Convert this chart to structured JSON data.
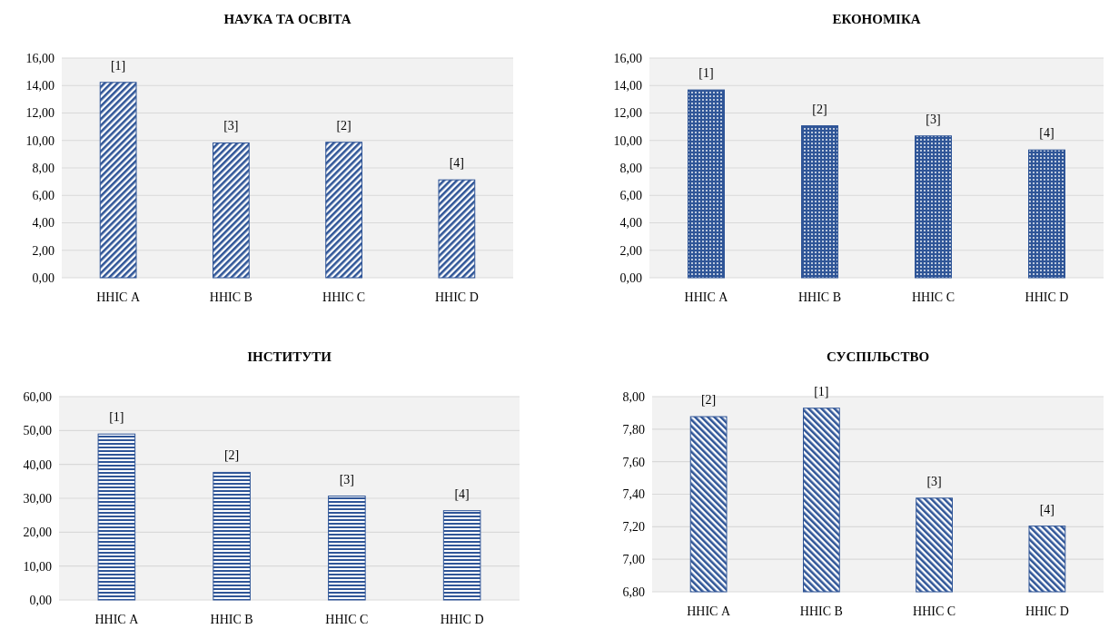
{
  "chart_data": [
    {
      "type": "bar",
      "title": "НАУКА ТА ОСВІТА",
      "categories": [
        "ННІС A",
        "ННІС B",
        "ННІС C",
        "ННІС D"
      ],
      "values": [
        14.23,
        9.82,
        9.87,
        7.13
      ],
      "color": "#2f5597",
      "ylim": [
        0,
        16
      ],
      "yticks": [
        {
          "value": 0,
          "label": "0,00"
        },
        {
          "value": 2,
          "label": "2,00"
        },
        {
          "value": 4,
          "label": "4,00"
        },
        {
          "value": 6,
          "label": "6,00"
        },
        {
          "value": 8,
          "label": "8,00"
        },
        {
          "value": 10,
          "label": "10,00"
        },
        {
          "value": 12,
          "label": "12,00"
        },
        {
          "value": 14,
          "label": "14,00"
        },
        {
          "value": 16,
          "label": "16,00"
        }
      ],
      "grid": "y",
      "annotations": [
        {
          "text": "[1]",
          "x": "ННІС A",
          "y": 14.23
        },
        {
          "text": "[3]",
          "x": "ННІС B",
          "y": 9.82
        },
        {
          "text": "[2]",
          "x": "ННІС C",
          "y": 9.87
        },
        {
          "text": "[4]",
          "x": "ННІС D",
          "y": 7.13
        }
      ]
    },
    {
      "type": "bar",
      "title": "ЕКОНОМІКА",
      "categories": [
        "ННІС A",
        "ННІС B",
        "ННІС C",
        "ННІС D"
      ],
      "values": [
        13.68,
        11.07,
        10.33,
        9.31
      ],
      "color": "#2f5597",
      "ylim": [
        0,
        16
      ],
      "yticks": [
        {
          "value": 0,
          "label": "0,00"
        },
        {
          "value": 2,
          "label": "2,00"
        },
        {
          "value": 4,
          "label": "4,00"
        },
        {
          "value": 6,
          "label": "6,00"
        },
        {
          "value": 8,
          "label": "8,00"
        },
        {
          "value": 10,
          "label": "10,00"
        },
        {
          "value": 12,
          "label": "12,00"
        },
        {
          "value": 14,
          "label": "14,00"
        },
        {
          "value": 16,
          "label": "16,00"
        }
      ],
      "grid": "y",
      "annotations": [
        {
          "text": "[1]",
          "x": "ННІС A",
          "y": 13.68
        },
        {
          "text": "[2]",
          "x": "ННІС B",
          "y": 11.07
        },
        {
          "text": "[3]",
          "x": "ННІС C",
          "y": 10.33
        },
        {
          "text": "[4]",
          "x": "ННІС D",
          "y": 9.31
        }
      ]
    },
    {
      "type": "bar",
      "title": "ІНСТИТУТИ",
      "categories": [
        "ННІС A",
        "ННІС B",
        "ННІС C",
        "ННІС D"
      ],
      "values": [
        48.97,
        37.65,
        30.66,
        26.34
      ],
      "color": "#2f5597",
      "ylim": [
        0,
        60
      ],
      "yticks": [
        {
          "value": 0,
          "label": "0,00"
        },
        {
          "value": 10,
          "label": "10,00"
        },
        {
          "value": 20,
          "label": "20,00"
        },
        {
          "value": 30,
          "label": "30,00"
        },
        {
          "value": 40,
          "label": "40,00"
        },
        {
          "value": 50,
          "label": "50,00"
        },
        {
          "value": 60,
          "label": "60,00"
        }
      ],
      "grid": "y",
      "annotations": [
        {
          "text": "[1]",
          "x": "ННІС A",
          "y": 48.97
        },
        {
          "text": "[2]",
          "x": "ННІС B",
          "y": 37.65
        },
        {
          "text": "[3]",
          "x": "ННІС C",
          "y": 30.66
        },
        {
          "text": "[4]",
          "x": "ННІС D",
          "y": 26.34
        }
      ]
    },
    {
      "type": "bar",
      "title": "СУСПІЛЬСТВО",
      "categories": [
        "ННІС A",
        "ННІС B",
        "ННІС C",
        "ННІС D"
      ],
      "values": [
        7.877,
        7.929,
        7.376,
        7.204
      ],
      "color": "#2f5597",
      "ylim": [
        6.8,
        8
      ],
      "yticks": [
        {
          "value": 6.8,
          "label": "6,80"
        },
        {
          "value": 7,
          "label": "7,00"
        },
        {
          "value": 7.2,
          "label": "7,20"
        },
        {
          "value": 7.4,
          "label": "7,40"
        },
        {
          "value": 7.6,
          "label": "7,60"
        },
        {
          "value": 7.8,
          "label": "7,80"
        },
        {
          "value": 8,
          "label": "8,00"
        }
      ],
      "grid": "y",
      "annotations": [
        {
          "text": "[2]",
          "x": "ННІС A",
          "y": 7.877
        },
        {
          "text": "[1]",
          "x": "ННІС B",
          "y": 7.929
        },
        {
          "text": "[3]",
          "x": "ННІС C",
          "y": 7.376
        },
        {
          "text": "[4]",
          "x": "ННІС D",
          "y": 7.204
        }
      ]
    }
  ]
}
